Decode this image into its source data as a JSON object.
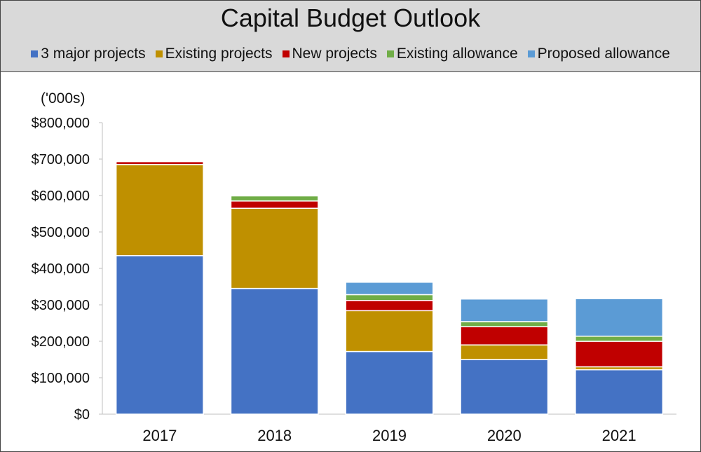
{
  "chart_data": {
    "type": "bar",
    "stacked": true,
    "title": "Capital Budget Outlook",
    "ylabel": "('000s)",
    "xlabel": "",
    "categories": [
      "2017",
      "2018",
      "2019",
      "2020",
      "2021"
    ],
    "ylim": [
      0,
      800000
    ],
    "y_ticks": [
      0,
      100000,
      200000,
      300000,
      400000,
      500000,
      600000,
      700000,
      800000
    ],
    "y_tick_labels": [
      "$0",
      "$100,000",
      "$200,000",
      "$300,000",
      "$400,000",
      "$500,000",
      "$600,000",
      "$700,000",
      "$800,000"
    ],
    "legend_position": "top",
    "grid": false,
    "series": [
      {
        "name": "3 major projects",
        "color": "#4472c4",
        "values": [
          435000,
          345000,
          172000,
          150000,
          122000
        ]
      },
      {
        "name": "Existing projects",
        "color": "#bf9000",
        "values": [
          250000,
          220000,
          112000,
          40000,
          8000
        ]
      },
      {
        "name": "New projects",
        "color": "#c00000",
        "values": [
          8000,
          20000,
          28000,
          50000,
          70000
        ]
      },
      {
        "name": "Existing allowance",
        "color": "#70ad47",
        "values": [
          0,
          14000,
          16000,
          14000,
          14000
        ]
      },
      {
        "name": "Proposed allowance",
        "color": "#5b9bd5",
        "values": [
          0,
          0,
          34000,
          62000,
          103000
        ]
      }
    ]
  }
}
